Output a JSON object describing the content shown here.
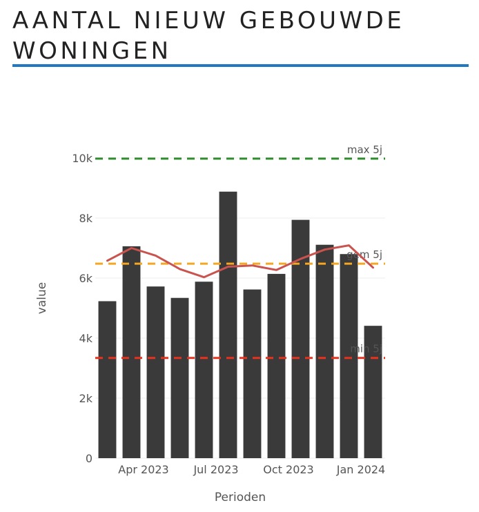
{
  "header": {
    "title": "AANTAL NIEUW GEBOUWDE WONINGEN"
  },
  "chart_data": {
    "type": "bar",
    "xlabel": "Perioden",
    "ylabel": "value",
    "ylim": [
      0,
      10000
    ],
    "y_ticks": [
      {
        "value": 0,
        "label": "0"
      },
      {
        "value": 2000,
        "label": "2k"
      },
      {
        "value": 4000,
        "label": "4k"
      },
      {
        "value": 6000,
        "label": "6k"
      },
      {
        "value": 8000,
        "label": "8k"
      },
      {
        "value": 10000,
        "label": "10k"
      }
    ],
    "x_ticks": [
      {
        "index": 1.5,
        "label": "Apr 2023"
      },
      {
        "index": 4.5,
        "label": "Jul 2023"
      },
      {
        "index": 7.5,
        "label": "Oct 2023"
      },
      {
        "index": 10.5,
        "label": "Jan 2024"
      }
    ],
    "values": [
      5230,
      7060,
      5720,
      5340,
      5880,
      8880,
      5620,
      6140,
      7940,
      7110,
      6800,
      4410
    ],
    "bar_color": "#3a3a3a",
    "trend": {
      "color": "#c9534e",
      "values": [
        6580,
        7000,
        6750,
        6300,
        6030,
        6380,
        6420,
        6270,
        6640,
        6950,
        7090,
        6350
      ]
    },
    "reference_lines": [
      {
        "label": "max 5j",
        "value": 9980,
        "color": "#2e8b2e"
      },
      {
        "label": "gem 5j",
        "value": 6480,
        "color": "#f5a623"
      },
      {
        "label": "min 5j",
        "value": 3340,
        "color": "#e8321e"
      }
    ],
    "grid": true
  }
}
